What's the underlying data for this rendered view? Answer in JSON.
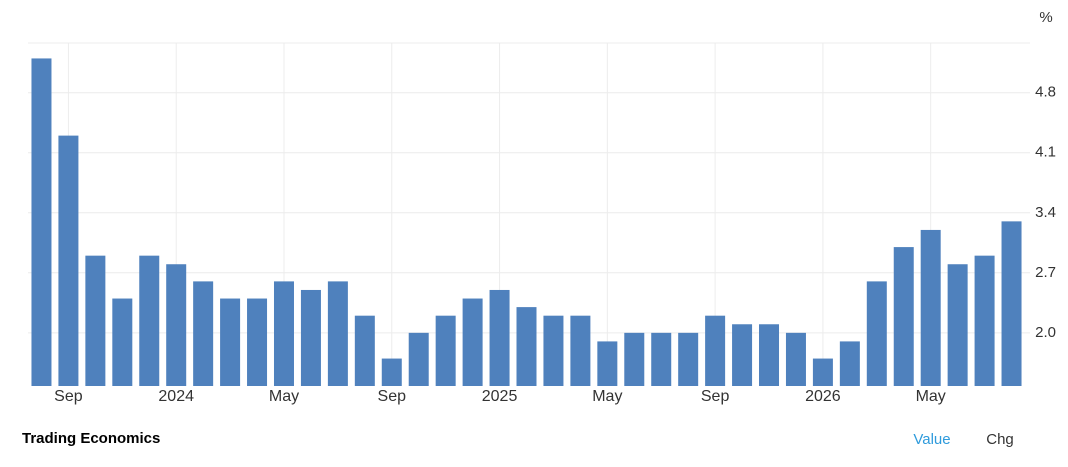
{
  "chart_data": {
    "type": "bar",
    "unit": "%",
    "color": "#4f81bd",
    "categories": [
      null,
      "Sep",
      null,
      null,
      null,
      "2024",
      null,
      null,
      null,
      "May",
      null,
      null,
      null,
      "Sep",
      null,
      null,
      null,
      "2025",
      null,
      null,
      null,
      "May",
      null,
      null,
      null,
      "Sep",
      null,
      null,
      null,
      "2026",
      null,
      null,
      null,
      "May",
      null,
      null,
      null
    ],
    "values": [
      5.2,
      4.3,
      2.9,
      2.4,
      2.9,
      2.8,
      2.6,
      2.4,
      2.4,
      2.6,
      2.5,
      2.6,
      2.2,
      1.7,
      2.0,
      2.2,
      2.4,
      2.5,
      2.3,
      2.2,
      2.2,
      1.9,
      2.0,
      2.0,
      2.0,
      2.2,
      2.1,
      2.1,
      2.0,
      1.7,
      1.9,
      2.6,
      3.0,
      3.2,
      2.8,
      2.9,
      3.3
    ],
    "ylim": [
      1.38,
      5.38
    ],
    "yticks": [
      {
        "value": 2,
        "label": "2.0"
      },
      2.7,
      3.4,
      4.1,
      4.8
    ],
    "grid": true,
    "source": "Trading Economics",
    "tabs": [
      "Value",
      "Chg"
    ]
  }
}
